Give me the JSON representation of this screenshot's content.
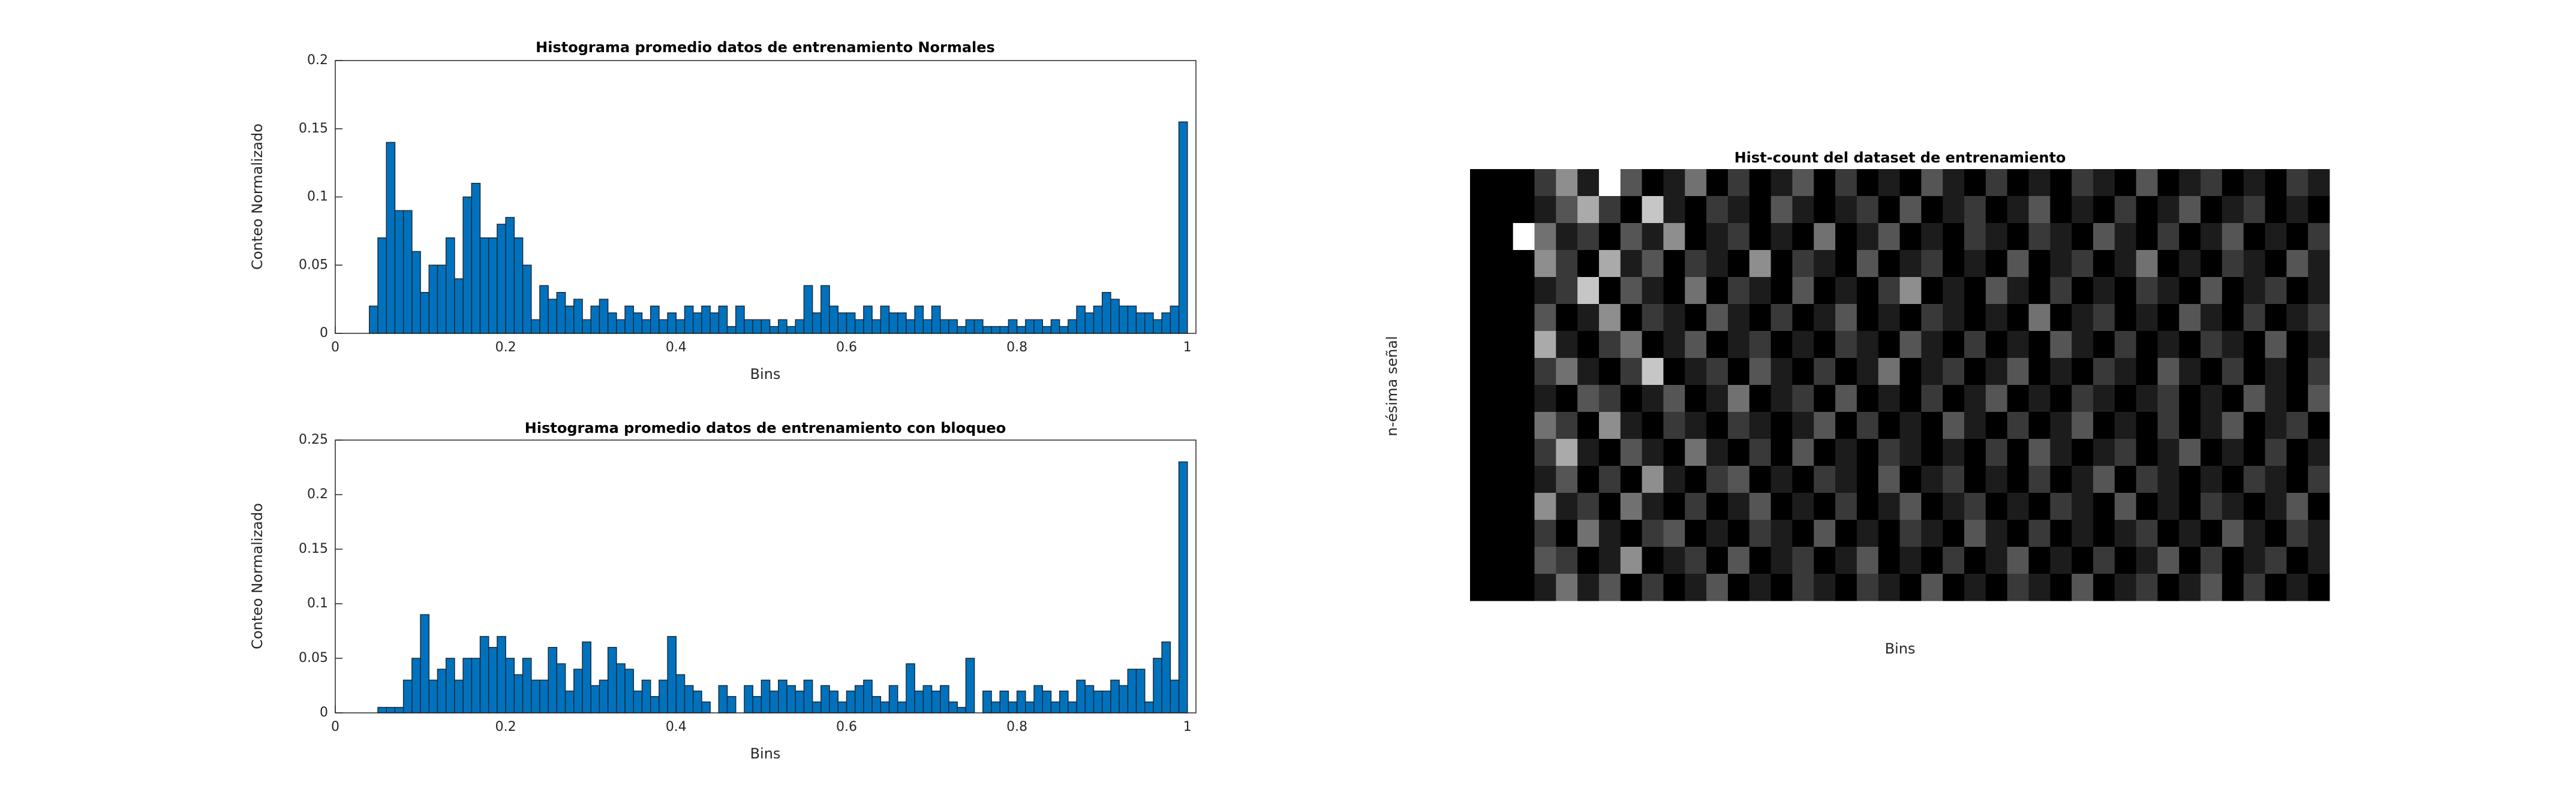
{
  "chart_data": [
    {
      "type": "histogram",
      "title": "Histograma promedio datos de entrenamiento Normales",
      "xlabel": "Bins",
      "ylabel": "Conteo Normalizado",
      "color": "#0072bd",
      "edgecolor": "#1a2a3a",
      "bins": [
        0,
        0.01,
        0.02,
        0.03,
        0.04,
        0.05,
        0.06,
        0.07,
        0.08,
        0.09,
        0.1,
        0.11,
        0.12,
        0.13,
        0.14,
        0.15,
        0.16,
        0.17,
        0.18,
        0.19,
        0.2,
        0.21,
        0.22,
        0.23,
        0.24,
        0.25,
        0.26,
        0.27,
        0.28,
        0.29,
        0.3,
        0.31,
        0.32,
        0.33,
        0.34,
        0.35,
        0.36,
        0.37,
        0.38,
        0.39,
        0.4,
        0.41,
        0.42,
        0.43,
        0.44,
        0.45,
        0.46,
        0.47,
        0.48,
        0.49,
        0.5,
        0.51,
        0.52,
        0.53,
        0.54,
        0.55,
        0.56,
        0.57,
        0.58,
        0.59,
        0.6,
        0.61,
        0.62,
        0.63,
        0.64,
        0.65,
        0.66,
        0.67,
        0.68,
        0.69,
        0.7,
        0.71,
        0.72,
        0.73,
        0.74,
        0.75,
        0.76,
        0.77,
        0.78,
        0.79,
        0.8,
        0.81,
        0.82,
        0.83,
        0.84,
        0.85,
        0.86,
        0.87,
        0.88,
        0.89,
        0.9,
        0.91,
        0.92,
        0.93,
        0.94,
        0.95,
        0.96,
        0.97,
        0.98,
        0.99,
        1
      ],
      "values": [
        0,
        0,
        0,
        0,
        0.02,
        0.07,
        0.14,
        0.09,
        0.09,
        0.06,
        0.03,
        0.05,
        0.05,
        0.07,
        0.04,
        0.1,
        0.11,
        0.07,
        0.07,
        0.08,
        0.085,
        0.07,
        0.05,
        0.01,
        0.035,
        0.025,
        0.03,
        0.02,
        0.025,
        0.01,
        0.02,
        0.025,
        0.015,
        0.01,
        0.02,
        0.015,
        0.01,
        0.02,
        0.01,
        0.015,
        0.01,
        0.02,
        0.015,
        0.02,
        0.015,
        0.02,
        0.005,
        0.02,
        0.01,
        0.01,
        0.01,
        0.005,
        0.01,
        0.005,
        0.01,
        0.035,
        0.015,
        0.035,
        0.02,
        0.015,
        0.015,
        0.01,
        0.02,
        0.01,
        0.02,
        0.015,
        0.015,
        0.01,
        0.02,
        0.01,
        0.02,
        0.01,
        0.01,
        0.005,
        0.01,
        0.01,
        0.005,
        0.005,
        0.005,
        0.01,
        0.005,
        0.01,
        0.01,
        0.005,
        0.01,
        0.005,
        0.01,
        0.02,
        0.015,
        0.02,
        0.03,
        0.025,
        0.02,
        0.02,
        0.015,
        0.015,
        0.01,
        0.015,
        0.02,
        0.155
      ],
      "xlim": [
        0,
        1.01
      ],
      "xticks": [
        0,
        0.2,
        0.4,
        0.6,
        0.8,
        1
      ],
      "ylim": [
        0,
        0.2
      ],
      "yticks": [
        0,
        0.05,
        0.1,
        0.15,
        0.2
      ]
    },
    {
      "type": "histogram",
      "title": "Histograma promedio datos de entrenamiento con bloqueo",
      "xlabel": "Bins",
      "ylabel": "Conteo Normalizado",
      "color": "#0072bd",
      "edgecolor": "#1a2a3a",
      "bins": [
        0,
        0.01,
        0.02,
        0.03,
        0.04,
        0.05,
        0.06,
        0.07,
        0.08,
        0.09,
        0.1,
        0.11,
        0.12,
        0.13,
        0.14,
        0.15,
        0.16,
        0.17,
        0.18,
        0.19,
        0.2,
        0.21,
        0.22,
        0.23,
        0.24,
        0.25,
        0.26,
        0.27,
        0.28,
        0.29,
        0.3,
        0.31,
        0.32,
        0.33,
        0.34,
        0.35,
        0.36,
        0.37,
        0.38,
        0.39,
        0.4,
        0.41,
        0.42,
        0.43,
        0.44,
        0.45,
        0.46,
        0.47,
        0.48,
        0.49,
        0.5,
        0.51,
        0.52,
        0.53,
        0.54,
        0.55,
        0.56,
        0.57,
        0.58,
        0.59,
        0.6,
        0.61,
        0.62,
        0.63,
        0.64,
        0.65,
        0.66,
        0.67,
        0.68,
        0.69,
        0.7,
        0.71,
        0.72,
        0.73,
        0.74,
        0.75,
        0.76,
        0.77,
        0.78,
        0.79,
        0.8,
        0.81,
        0.82,
        0.83,
        0.84,
        0.85,
        0.86,
        0.87,
        0.88,
        0.89,
        0.9,
        0.91,
        0.92,
        0.93,
        0.94,
        0.95,
        0.96,
        0.97,
        0.98,
        0.99,
        1
      ],
      "values": [
        0,
        0,
        0,
        0,
        0,
        0.005,
        0.005,
        0.005,
        0.03,
        0.05,
        0.09,
        0.03,
        0.04,
        0.05,
        0.03,
        0.05,
        0.05,
        0.07,
        0.06,
        0.07,
        0.05,
        0.035,
        0.05,
        0.03,
        0.03,
        0.06,
        0.045,
        0.02,
        0.04,
        0.065,
        0.025,
        0.03,
        0.06,
        0.045,
        0.04,
        0.02,
        0.03,
        0.015,
        0.03,
        0.07,
        0.035,
        0.025,
        0.02,
        0.01,
        0,
        0.025,
        0.015,
        0,
        0.025,
        0.015,
        0.03,
        0.02,
        0.03,
        0.025,
        0.02,
        0.03,
        0.01,
        0.025,
        0.02,
        0.01,
        0.02,
        0.025,
        0.03,
        0.015,
        0.01,
        0.025,
        0.01,
        0.045,
        0.02,
        0.025,
        0.02,
        0.025,
        0.01,
        0.005,
        0.05,
        0,
        0.02,
        0.01,
        0.02,
        0.01,
        0.02,
        0.01,
        0.025,
        0.02,
        0.01,
        0.02,
        0.01,
        0.03,
        0.025,
        0.02,
        0.02,
        0.03,
        0.025,
        0.04,
        0.04,
        0.01,
        0.05,
        0.065,
        0.03,
        0.23
      ],
      "xlim": [
        0,
        1.01
      ],
      "xticks": [
        0,
        0.2,
        0.4,
        0.6,
        0.8,
        1
      ],
      "ylim": [
        0,
        0.25
      ],
      "yticks": [
        0,
        0.05,
        0.1,
        0.15,
        0.2,
        0.25
      ]
    },
    {
      "type": "heatmap",
      "title": "Hist-count del dataset de entrenamiento",
      "xlabel": "Bins",
      "ylabel": "n-ésima señal",
      "colormap": "gray",
      "clim": [
        0,
        9
      ],
      "z": [
        [
          0,
          0,
          0,
          2,
          5,
          1,
          9,
          3,
          0,
          1,
          4,
          0,
          2,
          0,
          1,
          3,
          0,
          2,
          0,
          1,
          0,
          3,
          1,
          0,
          2,
          0,
          1,
          0,
          2,
          1,
          0,
          3,
          0,
          1,
          2,
          0,
          1,
          0,
          2,
          1
        ],
        [
          0,
          0,
          0,
          1,
          3,
          6,
          2,
          0,
          7,
          1,
          0,
          2,
          1,
          0,
          3,
          1,
          0,
          1,
          2,
          0,
          3,
          0,
          1,
          2,
          0,
          1,
          3,
          0,
          1,
          0,
          2,
          0,
          1,
          3,
          0,
          1,
          2,
          0,
          1,
          0
        ],
        [
          0,
          0,
          9,
          4,
          1,
          2,
          0,
          3,
          1,
          5,
          0,
          1,
          2,
          0,
          1,
          0,
          4,
          0,
          1,
          3,
          0,
          1,
          0,
          2,
          1,
          0,
          2,
          1,
          0,
          3,
          1,
          0,
          2,
          0,
          1,
          3,
          0,
          1,
          0,
          2
        ],
        [
          0,
          0,
          0,
          5,
          2,
          0,
          6,
          1,
          3,
          0,
          2,
          1,
          0,
          5,
          0,
          2,
          1,
          0,
          3,
          0,
          1,
          2,
          0,
          1,
          0,
          3,
          0,
          1,
          2,
          0,
          1,
          4,
          0,
          1,
          0,
          2,
          1,
          0,
          3,
          1
        ],
        [
          0,
          0,
          0,
          1,
          2,
          7,
          0,
          3,
          1,
          0,
          4,
          0,
          2,
          1,
          0,
          3,
          0,
          1,
          0,
          2,
          5,
          0,
          1,
          0,
          3,
          1,
          0,
          2,
          0,
          1,
          0,
          2,
          1,
          0,
          3,
          0,
          1,
          2,
          0,
          1
        ],
        [
          0,
          0,
          0,
          3,
          0,
          1,
          5,
          0,
          2,
          1,
          0,
          3,
          1,
          0,
          2,
          0,
          1,
          3,
          0,
          1,
          0,
          2,
          1,
          0,
          1,
          0,
          4,
          0,
          1,
          2,
          0,
          1,
          0,
          3,
          1,
          0,
          2,
          0,
          1,
          2
        ],
        [
          0,
          0,
          0,
          6,
          1,
          0,
          2,
          4,
          0,
          1,
          3,
          0,
          1,
          2,
          0,
          1,
          0,
          2,
          1,
          0,
          3,
          1,
          0,
          2,
          0,
          1,
          0,
          3,
          1,
          0,
          2,
          0,
          1,
          0,
          2,
          1,
          0,
          3,
          0,
          1
        ],
        [
          0,
          0,
          0,
          2,
          4,
          1,
          0,
          2,
          7,
          0,
          1,
          2,
          0,
          3,
          1,
          0,
          2,
          0,
          1,
          4,
          0,
          1,
          2,
          0,
          1,
          3,
          0,
          1,
          0,
          2,
          1,
          0,
          3,
          1,
          0,
          2,
          0,
          1,
          0,
          2
        ],
        [
          0,
          0,
          0,
          1,
          0,
          3,
          2,
          0,
          1,
          3,
          0,
          1,
          4,
          0,
          1,
          2,
          0,
          3,
          0,
          1,
          0,
          2,
          0,
          1,
          3,
          0,
          1,
          0,
          2,
          1,
          0,
          1,
          2,
          0,
          1,
          0,
          3,
          1,
          0,
          3
        ],
        [
          0,
          0,
          0,
          4,
          2,
          0,
          5,
          1,
          0,
          2,
          1,
          0,
          2,
          1,
          0,
          1,
          3,
          0,
          2,
          0,
          1,
          0,
          3,
          1,
          0,
          2,
          0,
          1,
          3,
          0,
          1,
          0,
          2,
          0,
          1,
          3,
          0,
          1,
          2,
          0
        ],
        [
          0,
          0,
          0,
          2,
          6,
          1,
          0,
          3,
          1,
          0,
          4,
          1,
          0,
          2,
          0,
          3,
          0,
          1,
          0,
          2,
          1,
          0,
          1,
          0,
          2,
          0,
          3,
          1,
          0,
          1,
          2,
          0,
          1,
          3,
          0,
          1,
          0,
          2,
          0,
          1
        ],
        [
          0,
          0,
          0,
          1,
          3,
          0,
          2,
          0,
          5,
          1,
          0,
          2,
          3,
          0,
          1,
          0,
          2,
          1,
          0,
          3,
          0,
          1,
          2,
          0,
          1,
          0,
          2,
          0,
          1,
          3,
          0,
          2,
          1,
          0,
          1,
          0,
          2,
          1,
          0,
          2
        ],
        [
          0,
          0,
          0,
          5,
          1,
          2,
          0,
          4,
          1,
          0,
          2,
          0,
          1,
          3,
          0,
          1,
          0,
          2,
          0,
          1,
          3,
          0,
          1,
          2,
          0,
          1,
          0,
          2,
          1,
          0,
          3,
          0,
          1,
          0,
          2,
          1,
          0,
          1,
          3,
          0
        ],
        [
          0,
          0,
          0,
          2,
          0,
          4,
          1,
          0,
          2,
          3,
          0,
          1,
          0,
          2,
          1,
          0,
          3,
          0,
          1,
          0,
          2,
          1,
          0,
          3,
          1,
          0,
          2,
          0,
          1,
          0,
          1,
          2,
          0,
          1,
          0,
          3,
          1,
          0,
          2,
          1
        ],
        [
          0,
          0,
          0,
          3,
          2,
          0,
          1,
          5,
          0,
          1,
          2,
          0,
          3,
          0,
          1,
          2,
          0,
          1,
          3,
          0,
          1,
          0,
          2,
          0,
          1,
          3,
          0,
          1,
          0,
          2,
          0,
          1,
          3,
          0,
          2,
          0,
          1,
          2,
          0,
          1
        ],
        [
          0,
          0,
          0,
          1,
          4,
          1,
          3,
          0,
          2,
          0,
          1,
          3,
          0,
          1,
          0,
          2,
          1,
          0,
          2,
          1,
          0,
          3,
          0,
          1,
          0,
          2,
          1,
          0,
          3,
          0,
          1,
          2,
          0,
          1,
          3,
          0,
          2,
          0,
          1,
          0
        ]
      ]
    }
  ]
}
